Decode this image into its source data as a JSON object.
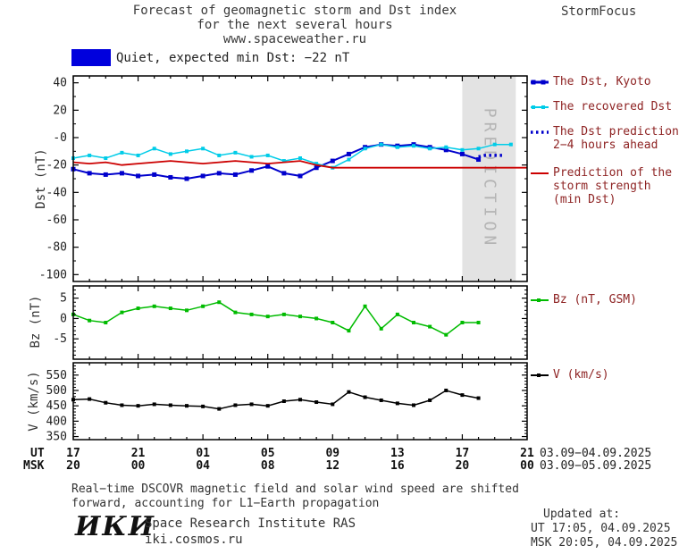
{
  "header": {
    "title_line1": "Forecast of geomagnetic storm and Dst index",
    "title_line2": "for the next several hours",
    "title_line3": "www.spaceweather.ru",
    "brand": "StormFocus"
  },
  "status": {
    "label": "Quiet, expected min Dst: −22 nT"
  },
  "legend": {
    "dst_kyoto": "The Dst, Kyoto",
    "recovered": "The recovered Dst",
    "prediction_l1": "The Dst prediction",
    "prediction_l2": "2−4 hours ahead",
    "storm_l1": "Prediction of the",
    "storm_l2": "storm strength",
    "storm_l3": "(min Dst)",
    "bz": "Bz (nT, GSM)",
    "v": "V (km/s)"
  },
  "xaxis": {
    "xlim": [
      0,
      28
    ],
    "major_hours": [
      0,
      4,
      8,
      12,
      16,
      20,
      24,
      28
    ],
    "ut_tick_labels": [
      "17",
      "21",
      "01",
      "05",
      "09",
      "13",
      "17",
      "21"
    ],
    "msk_tick_labels": [
      "20",
      "00",
      "04",
      "08",
      "12",
      "16",
      "20",
      "00"
    ],
    "ut_axis_label": "UT",
    "msk_axis_label": "MSK",
    "ut_date_range": "03.09−04.09.2025",
    "msk_date_range": "03.09−05.09.2025"
  },
  "chart_data": [
    {
      "type": "line",
      "title": "Forecast of geomagnetic storm and Dst index for the next several hours",
      "ylabel": "Dst (nT)",
      "ylim": [
        -105,
        45
      ],
      "yticks": [
        40,
        20,
        0,
        -20,
        -40,
        -60,
        -80,
        -100
      ],
      "ytick_labels": [
        "40",
        "20",
        "-0",
        "-20",
        "-40",
        "-60",
        "-80",
        "-100"
      ],
      "minor_step": 10,
      "prediction_band": {
        "x0": 24,
        "x1": 27.3,
        "label": "PREDICTION"
      },
      "series": [
        {
          "name": "The Dst, Kyoto",
          "color": "#0000cc",
          "width": 2,
          "marker": 5,
          "x": [
            0,
            1,
            2,
            3,
            4,
            5,
            6,
            7,
            8,
            9,
            10,
            11,
            12,
            13,
            14,
            15,
            16,
            17,
            18,
            19,
            20,
            21,
            22,
            23,
            24,
            25
          ],
          "y": [
            -23,
            -26,
            -27,
            -26,
            -28,
            -27,
            -29,
            -30,
            -28,
            -26,
            -27,
            -24,
            -21,
            -26,
            -28,
            -22,
            -17,
            -12,
            -7,
            -5,
            -6,
            -5,
            -7,
            -9,
            -12,
            -16
          ]
        },
        {
          "name": "The recovered Dst",
          "color": "#00cce8",
          "width": 1.5,
          "marker": 4,
          "x": [
            0,
            1,
            2,
            3,
            4,
            5,
            6,
            7,
            8,
            9,
            10,
            11,
            12,
            13,
            14,
            15,
            16,
            17,
            18,
            19,
            20,
            21,
            22,
            23,
            24,
            25,
            26,
            27
          ],
          "y": [
            -15,
            -13,
            -15,
            -11,
            -13,
            -8,
            -12,
            -10,
            -8,
            -13,
            -11,
            -14,
            -13,
            -17,
            -15,
            -19,
            -22,
            -16,
            -8,
            -5,
            -7,
            -6,
            -8,
            -7,
            -9,
            -8,
            -5,
            -5
          ]
        },
        {
          "name": "The Dst prediction 2-4 hours ahead",
          "color": "#0000cc",
          "width": 3.5,
          "dash": "2.5 3.5",
          "x": [
            25,
            25.4,
            25.8,
            26.2,
            26.6
          ],
          "y": [
            -14,
            -13,
            -13,
            -13,
            -13
          ]
        },
        {
          "name": "Prediction of the storm strength (min Dst)",
          "color": "#cc0000",
          "width": 1.8,
          "x": [
            0,
            1,
            2,
            3,
            4,
            5,
            6,
            7,
            8,
            9,
            10,
            11,
            12,
            13,
            14,
            15,
            16,
            17,
            18,
            19,
            20,
            21,
            22,
            23,
            24,
            25,
            26,
            27,
            28
          ],
          "y": [
            -18,
            -19,
            -18,
            -20,
            -19,
            -18,
            -17,
            -18,
            -19,
            -18,
            -17,
            -18,
            -19,
            -18,
            -17,
            -20,
            -22,
            -22,
            -22,
            -22,
            -22,
            -22,
            -22,
            -22,
            -22,
            -22,
            -22,
            -22,
            -22
          ]
        }
      ]
    },
    {
      "type": "line",
      "ylabel": "Bz (nT)",
      "ylim": [
        -10,
        8
      ],
      "yticks": [
        5,
        0,
        -5
      ],
      "ytick_labels": [
        "5",
        "0",
        "-5"
      ],
      "minor_step": 1,
      "series": [
        {
          "name": "Bz (nT, GSM)",
          "color": "#00bb00",
          "width": 1.5,
          "marker": 4,
          "x": [
            0,
            1,
            2,
            3,
            4,
            5,
            6,
            7,
            8,
            9,
            10,
            11,
            12,
            13,
            14,
            15,
            16,
            17,
            18,
            19,
            20,
            21,
            22,
            23,
            24,
            25
          ],
          "y": [
            1,
            -0.5,
            -1,
            1.5,
            2.5,
            3,
            2.5,
            2,
            3,
            4,
            1.5,
            1,
            0.5,
            1,
            0.5,
            0,
            -1,
            -3,
            3,
            -2.5,
            1,
            -1,
            -2,
            -4,
            -1,
            -1
          ]
        }
      ]
    },
    {
      "type": "line",
      "ylabel": "V (km/s)",
      "ylim": [
        340,
        590
      ],
      "yticks": [
        550,
        500,
        450,
        400,
        350
      ],
      "ytick_labels": [
        "550",
        "500",
        "450",
        "400",
        "350"
      ],
      "minor_step": 10,
      "series": [
        {
          "name": "V (km/s)",
          "color": "#000000",
          "width": 1.5,
          "marker": 4,
          "x": [
            0,
            1,
            2,
            3,
            4,
            5,
            6,
            7,
            8,
            9,
            10,
            11,
            12,
            13,
            14,
            15,
            16,
            17,
            18,
            19,
            20,
            21,
            22,
            23,
            24,
            25
          ],
          "y": [
            470,
            472,
            460,
            452,
            450,
            455,
            452,
            450,
            448,
            440,
            452,
            455,
            450,
            465,
            470,
            462,
            455,
            495,
            478,
            468,
            458,
            452,
            468,
            500,
            485,
            475
          ]
        }
      ]
    }
  ],
  "footer": {
    "note_line1": "Real−time DSCOVR magnetic field and solar wind speed are shifted",
    "note_line2": "forward, accounting for L1−Earth propagation",
    "updated_label": "Updated at:",
    "updated_ut": "UT  17:05, 04.09.2025",
    "updated_msk": "MSK 20:05, 04.09.2025",
    "logo": "ИКИ",
    "institute": "Space Research Institute RAS",
    "site": "iki.cosmos.ru"
  },
  "colors": {
    "dst_kyoto": "#0000cc",
    "recovered": "#00cce8",
    "prediction": "#0000cc",
    "storm": "#cc0000",
    "bz": "#00bb00",
    "v": "#000000",
    "swatch": "#0000dd",
    "band_fill": "#e3e3e3",
    "band_text": "#b4b4b4",
    "legend_text": "#8e2323"
  }
}
